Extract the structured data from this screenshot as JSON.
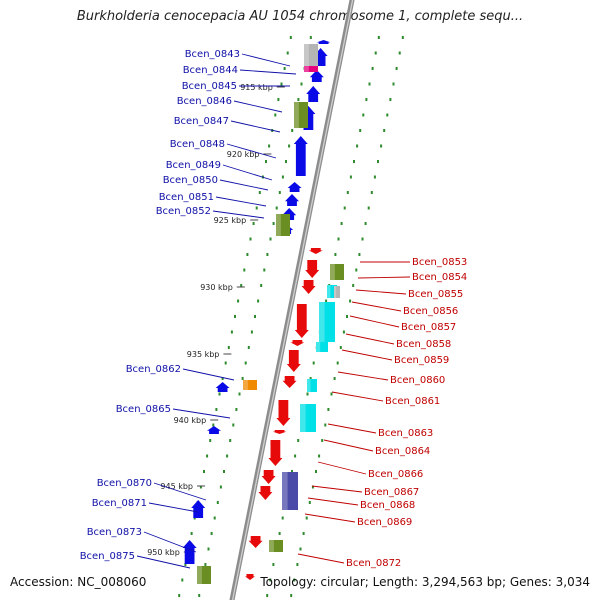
{
  "title": "Burkholderia cenocepacia AU 1054 chromosome 1, complete sequ...",
  "footer": {
    "accession": "Accession: NC_008060",
    "stats": "Topology: circular; Length: 3,294,563 bp; Genes: 3,034"
  },
  "colors": {
    "backbone": "#8c8c8c",
    "forward_gene": "#0a0ae6",
    "reverse_gene": "#e60a0a",
    "label_blue": "#1010a8",
    "label_red": "#c00000",
    "olive": "#6b8e23",
    "cyan": "#00e0e6",
    "gray": "#b4b4b4",
    "magenta": "#e6007e",
    "orange": "#f08a00",
    "slate": "#4a4aa8",
    "tick_green": "#2e8b2e"
  },
  "kbp_labels": [
    "915 kbp",
    "920 kbp",
    "925 kbp",
    "930 kbp",
    "935 kbp",
    "940 kbp",
    "945 kbp",
    "950 kbp"
  ],
  "genes_forward": [
    "Bcen_0843",
    "Bcen_0844",
    "Bcen_0845",
    "Bcen_0846",
    "Bcen_0847",
    "Bcen_0848",
    "Bcen_0849",
    "Bcen_0850",
    "Bcen_0851",
    "Bcen_0852",
    "Bcen_0862",
    "Bcen_0865",
    "Bcen_0870",
    "Bcen_0871",
    "Bcen_0873",
    "Bcen_0875"
  ],
  "genes_reverse": [
    "Bcen_0853",
    "Bcen_0854",
    "Bcen_0855",
    "Bcen_0856",
    "Bcen_0857",
    "Bcen_0858",
    "Bcen_0859",
    "Bcen_0860",
    "Bcen_0861",
    "Bcen_0863",
    "Bcen_0864",
    "Bcen_0866",
    "Bcen_0867",
    "Bcen_0868",
    "Bcen_0869",
    "Bcen_0872"
  ]
}
